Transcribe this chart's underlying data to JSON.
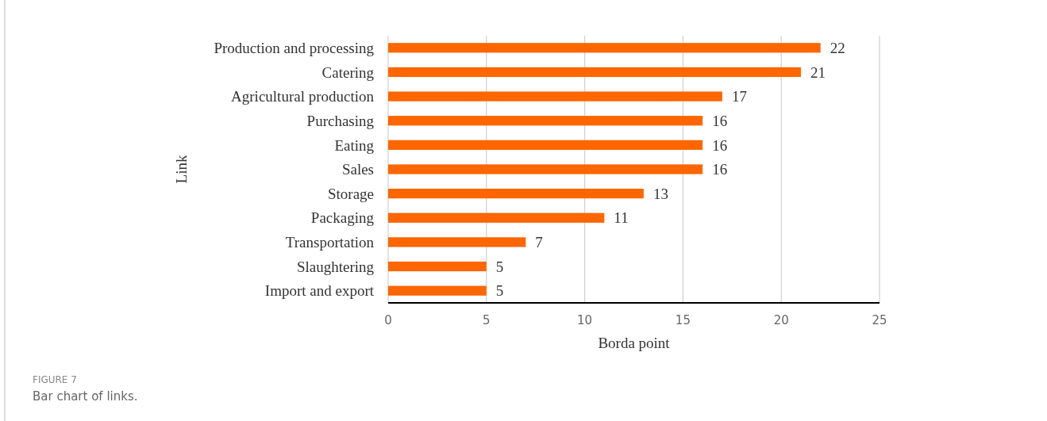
{
  "chart_data": {
    "type": "bar",
    "orientation": "horizontal",
    "xlabel": "Borda point",
    "ylabel": "Link",
    "categories": [
      "Production and processing",
      "Catering",
      "Agricultural production",
      "Purchasing",
      "Eating",
      "Sales",
      "Storage",
      "Packaging",
      "Transportation",
      "Slaughtering",
      "Import and export"
    ],
    "values": [
      22,
      21,
      17,
      16,
      16,
      16,
      13,
      11,
      7,
      5,
      5
    ],
    "color": "#ff6600",
    "xlim": [
      0,
      25
    ],
    "xticks": [
      0,
      5,
      10,
      15,
      20,
      25
    ],
    "grid": "x",
    "data_labels": true,
    "annotations": [
      "FIGURE 7",
      "Bar chart of links."
    ]
  }
}
